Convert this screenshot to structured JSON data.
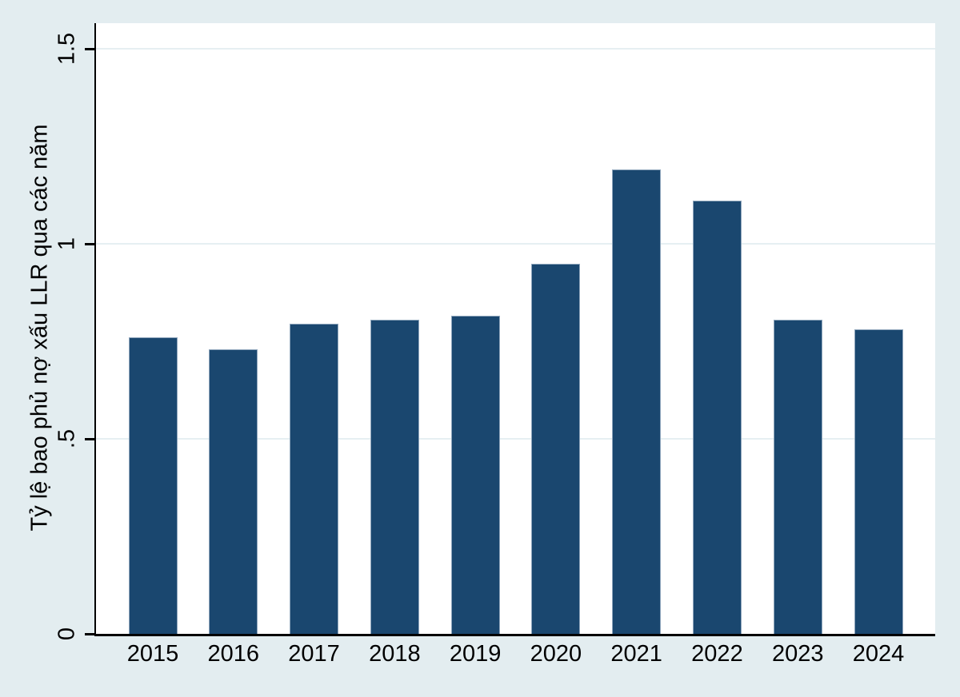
{
  "chart_data": {
    "type": "bar",
    "title": "",
    "categories": [
      "2015",
      "2016",
      "2017",
      "2018",
      "2019",
      "2020",
      "2021",
      "2022",
      "2023",
      "2024"
    ],
    "values": [
      0.76,
      0.73,
      0.795,
      0.805,
      0.815,
      0.95,
      1.19,
      1.11,
      0.805,
      0.78
    ],
    "xlabel": "",
    "ylabel": "Tỷ lệ bao phủ nợ xấu LLR qua các năm",
    "ylim": [
      0,
      1.566
    ],
    "yticks": [
      {
        "value": 0,
        "label": "0"
      },
      {
        "value": 0.5,
        "label": ".5"
      },
      {
        "value": 1,
        "label": "1"
      },
      {
        "value": 1.5,
        "label": "1.5"
      }
    ],
    "grid": true,
    "legend": "none",
    "colors": {
      "background": "#e3edf0",
      "plot_background": "#ffffff",
      "bar_fill": "#1a476f",
      "bar_outline": "#8fa6bc",
      "gridline": "#e6eff2",
      "axis": "#000000",
      "text": "#000000"
    }
  }
}
